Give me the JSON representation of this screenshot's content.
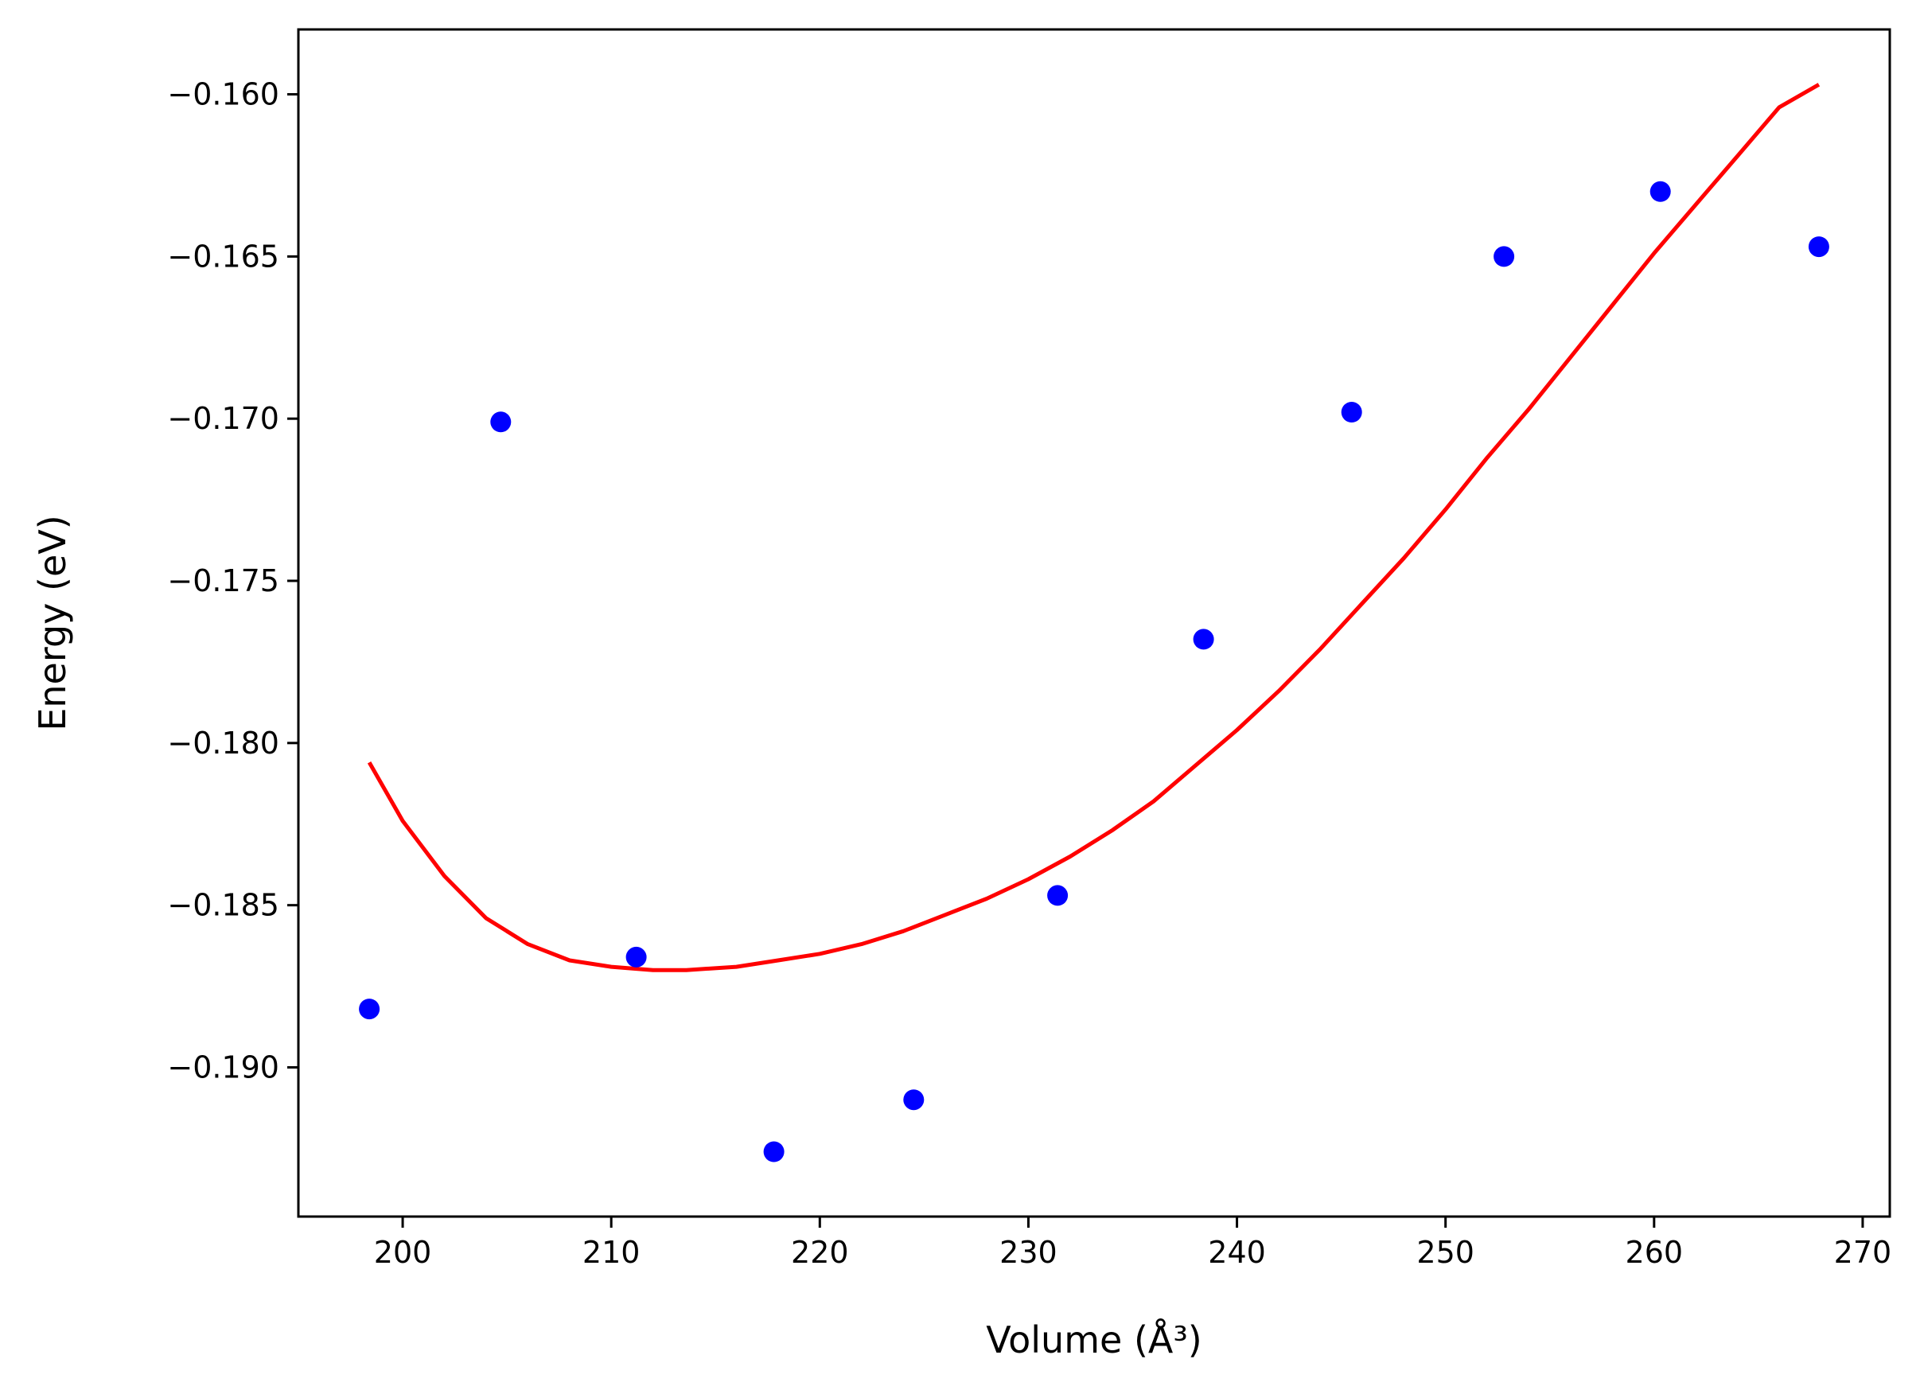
{
  "chart_data": {
    "type": "scatter",
    "xlabel": "Volume (Å³)",
    "ylabel": "Energy (eV)",
    "xlim": [
      195,
      271.3
    ],
    "ylim": [
      -0.1946,
      -0.158
    ],
    "xticks": [
      200,
      210,
      220,
      230,
      240,
      250,
      260,
      270
    ],
    "yticks": [
      -0.19,
      -0.185,
      -0.18,
      -0.175,
      -0.17,
      -0.165,
      -0.16
    ],
    "xtick_labels": [
      "200",
      "210",
      "220",
      "230",
      "240",
      "250",
      "260",
      "270"
    ],
    "ytick_labels": [
      "−0.190",
      "−0.185",
      "−0.180",
      "−0.175",
      "−0.170",
      "−0.165",
      "−0.160"
    ],
    "grid": false,
    "series": [
      {
        "kind": "points",
        "color": "#0000ff",
        "x": [
          198.4,
          204.7,
          211.2,
          217.8,
          224.5,
          231.4,
          238.4,
          245.5,
          252.8,
          260.3,
          267.9
        ],
        "y": [
          -0.1882,
          -0.1701,
          -0.1866,
          -0.1926,
          -0.191,
          -0.1847,
          -0.1768,
          -0.1698,
          -0.165,
          -0.163,
          -0.1647
        ]
      },
      {
        "kind": "line",
        "color": "#ff0000",
        "x": [
          198.4,
          200,
          202,
          204,
          206,
          208,
          210,
          212,
          213.6,
          216,
          218,
          220,
          222,
          224,
          226,
          228,
          230,
          232,
          234,
          236,
          238,
          240,
          242,
          244,
          246,
          248,
          250,
          252,
          254,
          256,
          258,
          260,
          262,
          264,
          266,
          267.9
        ],
        "y": [
          -0.1806,
          -0.1824,
          -0.1841,
          -0.1854,
          -0.1862,
          -0.1867,
          -0.1869,
          -0.187,
          -0.187,
          -0.1869,
          -0.1867,
          -0.1865,
          -0.1862,
          -0.1858,
          -0.1853,
          -0.1848,
          -0.1842,
          -0.1835,
          -0.1827,
          -0.1818,
          -0.1807,
          -0.1796,
          -0.1784,
          -0.1771,
          -0.1757,
          -0.1743,
          -0.1728,
          -0.1712,
          -0.1697,
          -0.1681,
          -0.1665,
          -0.1649,
          -0.1634,
          -0.1619,
          -0.1604,
          -0.1597
        ]
      }
    ]
  }
}
